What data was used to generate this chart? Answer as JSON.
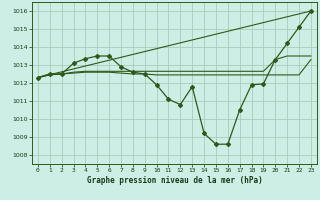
{
  "background_color": "#cceee4",
  "grid_color": "#aaccbb",
  "line_color": "#2d5a1b",
  "title": "Graphe pression niveau de la mer (hPa)",
  "xlim": [
    -0.5,
    23.5
  ],
  "ylim": [
    1007.5,
    1016.5
  ],
  "yticks": [
    1008,
    1009,
    1010,
    1011,
    1012,
    1013,
    1014,
    1015,
    1016
  ],
  "xticks": [
    0,
    1,
    2,
    3,
    4,
    5,
    6,
    7,
    8,
    9,
    10,
    11,
    12,
    13,
    14,
    15,
    16,
    17,
    18,
    19,
    20,
    21,
    22,
    23
  ],
  "line1_x": [
    0,
    1,
    2,
    3,
    4,
    5,
    6,
    7,
    8,
    9,
    10,
    11,
    12,
    13,
    14,
    15,
    16,
    17,
    18,
    19,
    20,
    21,
    22,
    23
  ],
  "line1_y": [
    1012.3,
    1012.5,
    1012.5,
    1013.1,
    1013.35,
    1013.5,
    1013.5,
    1012.9,
    1012.6,
    1012.5,
    1011.9,
    1011.1,
    1010.8,
    1011.8,
    1009.2,
    1008.6,
    1008.6,
    1010.5,
    1011.9,
    1011.95,
    1013.3,
    1014.2,
    1015.1,
    1016.0
  ],
  "line2_x": [
    0,
    1,
    2,
    3,
    4,
    5,
    6,
    7,
    8,
    9,
    10,
    11,
    12,
    13,
    14,
    15,
    16,
    17,
    18,
    19,
    20,
    21,
    22,
    23
  ],
  "line2_y": [
    1012.3,
    1012.45,
    1012.5,
    1012.55,
    1012.6,
    1012.6,
    1012.6,
    1012.55,
    1012.5,
    1012.5,
    1012.45,
    1012.45,
    1012.45,
    1012.45,
    1012.45,
    1012.45,
    1012.45,
    1012.45,
    1012.45,
    1012.45,
    1012.45,
    1012.45,
    1012.45,
    1013.3
  ],
  "line3_x": [
    0,
    23
  ],
  "line3_y": [
    1012.3,
    1016.0
  ],
  "line4_x": [
    0,
    1,
    2,
    3,
    4,
    5,
    6,
    7,
    8,
    9,
    10,
    11,
    12,
    13,
    14,
    15,
    16,
    17,
    18,
    19,
    20,
    21,
    22,
    23
  ],
  "line4_y": [
    1012.3,
    1012.5,
    1012.5,
    1012.6,
    1012.65,
    1012.65,
    1012.65,
    1012.65,
    1012.65,
    1012.65,
    1012.65,
    1012.65,
    1012.65,
    1012.65,
    1012.65,
    1012.65,
    1012.65,
    1012.65,
    1012.65,
    1012.65,
    1013.3,
    1013.5,
    1013.5,
    1013.5
  ]
}
